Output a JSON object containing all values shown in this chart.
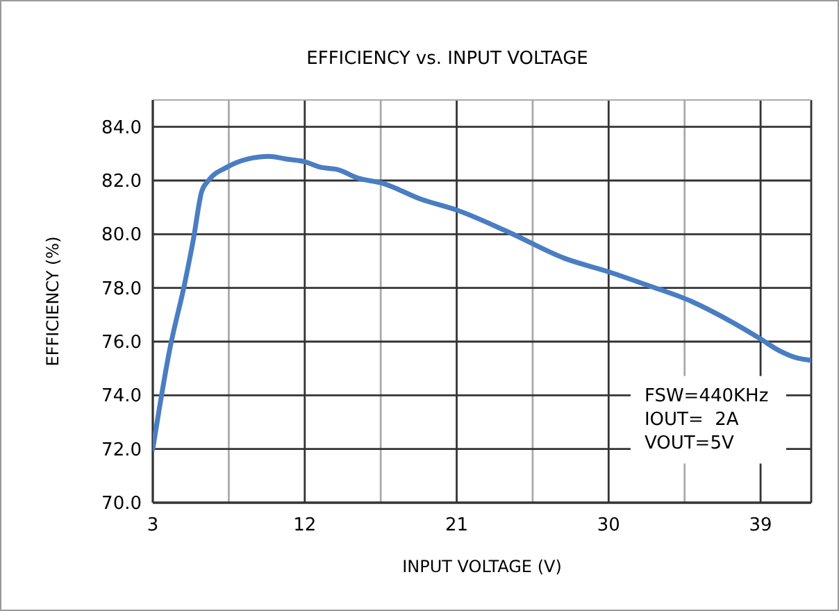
{
  "chart_data": {
    "type": "line",
    "title": "EFFICIENCY vs. INPUT VOLTAGE",
    "xlabel": "INPUT VOLTAGE (V)",
    "ylabel": "EFFICIENCY (%)",
    "xlim": [
      3,
      42
    ],
    "ylim": [
      70,
      85
    ],
    "xticks": [
      3,
      {
        "value": 7.5,
        "label": null
      },
      12,
      {
        "value": 16.5,
        "label": null
      },
      21,
      {
        "value": 25.5,
        "label": null
      },
      30,
      {
        "value": 34.5,
        "label": null
      },
      39
    ],
    "yticks": [
      {
        "value": 70,
        "label": "70.0"
      },
      {
        "value": 72,
        "label": "72.0"
      },
      {
        "value": 74,
        "label": "74.0"
      },
      {
        "value": 76,
        "label": "76.0"
      },
      {
        "value": 78,
        "label": "78.0"
      },
      {
        "value": 80,
        "label": "80.0"
      },
      {
        "value": 82,
        "label": "82.0"
      },
      {
        "value": 84,
        "label": "84.0"
      }
    ],
    "grid": true,
    "line_style": "solid",
    "marker": "none",
    "annotations": [
      "FSW=440KHz",
      "IOUT=  2A",
      "VOUT=5V"
    ],
    "series": [
      {
        "color": "#4a7dc2",
        "x": [
          3,
          4,
          4.9,
          5.4,
          5.9,
          6.3,
          7.4,
          8.6,
          9.9,
          10.9,
          12,
          12.9,
          14,
          15.1,
          16.6,
          18.9,
          21,
          24,
          27.4,
          30,
          32.3,
          34.9,
          37.1,
          39,
          40,
          41.1,
          42
        ],
        "values": [
          72,
          75.7,
          78.2,
          79.8,
          81.6,
          82,
          82.5,
          82.8,
          82.9,
          82.8,
          82.7,
          82.5,
          82.4,
          82.1,
          81.9,
          81.3,
          80.9,
          80.1,
          79.1,
          78.6,
          78.1,
          77.5,
          76.8,
          76.1,
          75.7,
          75.4,
          75.3
        ]
      }
    ]
  }
}
